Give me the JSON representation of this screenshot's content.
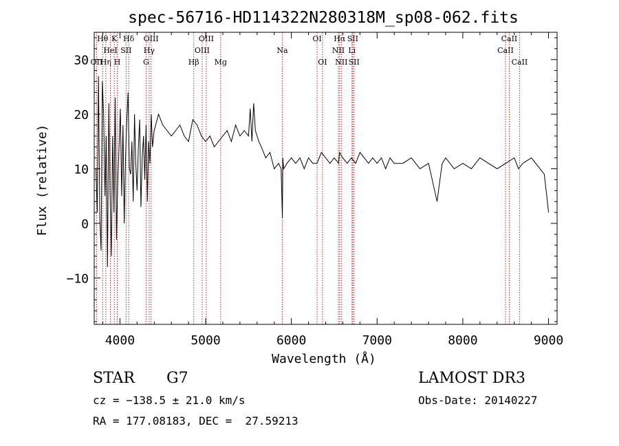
{
  "chart_data": {
    "type": "line",
    "title": "spec-56716-HD114322N280318M_sp08-062.fits",
    "xlabel": "Wavelength (Å)",
    "ylabel": "Flux (relative)",
    "xlim": [
      3700,
      9100
    ],
    "ylim": [
      -18.5,
      35
    ],
    "xticks": [
      4000,
      5000,
      6000,
      7000,
      8000,
      9000
    ],
    "xtick_labels": [
      "4000",
      "5000",
      "6000",
      "7000",
      "8000",
      "9000"
    ],
    "yticks": [
      -10,
      0,
      10,
      20,
      30
    ],
    "ytick_labels": [
      "−10",
      "0",
      "10",
      "20",
      "30"
    ],
    "line_color": "#000000",
    "marker_color": "#b22222",
    "series": [
      {
        "name": "flux",
        "x": [
          3720,
          3735,
          3750,
          3765,
          3780,
          3795,
          3810,
          3825,
          3840,
          3855,
          3870,
          3885,
          3900,
          3915,
          3930,
          3945,
          3960,
          3975,
          3990,
          4005,
          4020,
          4035,
          4050,
          4065,
          4080,
          4095,
          4110,
          4125,
          4140,
          4155,
          4170,
          4185,
          4200,
          4215,
          4230,
          4245,
          4260,
          4275,
          4290,
          4305,
          4320,
          4335,
          4350,
          4365,
          4380,
          4400,
          4450,
          4500,
          4550,
          4600,
          4650,
          4700,
          4750,
          4800,
          4850,
          4900,
          4950,
          5000,
          5050,
          5100,
          5150,
          5200,
          5250,
          5300,
          5350,
          5400,
          5450,
          5500,
          5520,
          5540,
          5560,
          5580,
          5600,
          5620,
          5650,
          5700,
          5750,
          5800,
          5850,
          5880,
          5895,
          5900,
          5910,
          5950,
          6000,
          6050,
          6100,
          6150,
          6200,
          6250,
          6300,
          6350,
          6400,
          6450,
          6500,
          6550,
          6563,
          6600,
          6650,
          6700,
          6750,
          6800,
          6850,
          6900,
          6950,
          7000,
          7050,
          7100,
          7150,
          7200,
          7300,
          7400,
          7500,
          7600,
          7700,
          7750,
          7760,
          7800,
          7900,
          8000,
          8100,
          8200,
          8300,
          8400,
          8500,
          8600,
          8650,
          8700,
          8800,
          8900,
          8950,
          8980,
          9000
        ],
        "y": [
          10,
          2,
          27,
          1,
          -5,
          26,
          20,
          5,
          16,
          -8,
          22,
          5,
          -6,
          16,
          2,
          23,
          -3,
          8,
          14,
          21,
          5,
          18,
          0,
          12,
          19,
          24,
          10,
          9,
          15,
          4,
          20,
          11,
          6,
          14,
          19,
          3,
          12,
          16,
          8,
          18,
          4,
          15,
          11,
          20,
          14,
          17,
          20,
          18,
          17,
          16,
          17,
          18,
          16,
          15,
          19,
          18,
          16,
          15,
          16,
          14,
          15,
          16,
          17,
          15,
          18,
          16,
          17,
          16,
          21,
          15,
          22,
          17,
          16,
          15,
          14,
          12,
          13,
          10,
          11,
          10,
          1,
          12,
          10,
          11,
          12,
          11,
          12,
          10,
          12,
          11,
          11,
          13,
          12,
          11,
          12,
          11,
          13,
          12,
          11,
          12,
          11,
          13,
          12,
          11,
          12,
          11,
          12,
          10,
          12,
          11,
          11,
          12,
          10,
          11,
          4,
          10,
          11,
          12,
          10,
          11,
          10,
          12,
          11,
          10,
          11,
          12,
          10,
          11,
          12,
          10,
          9,
          5,
          2
        ]
      }
    ],
    "lines": [
      {
        "name": "OII",
        "wave": 3727,
        "row": 3
      },
      {
        "name": "Hθ",
        "wave": 3798,
        "row": 1
      },
      {
        "name": "Hη",
        "wave": 3835,
        "row": 3
      },
      {
        "name": "HeI",
        "wave": 3889,
        "row": 2
      },
      {
        "name": "K",
        "wave": 3934,
        "row": 1
      },
      {
        "name": "H",
        "wave": 3969,
        "row": 3
      },
      {
        "name": "SII",
        "wave": 4072,
        "row": 2
      },
      {
        "name": "Hδ",
        "wave": 4102,
        "row": 1
      },
      {
        "name": "G",
        "wave": 4305,
        "row": 3
      },
      {
        "name": "Hγ",
        "wave": 4341,
        "row": 2
      },
      {
        "name": "OIII",
        "wave": 4363,
        "row": 1
      },
      {
        "name": "Hβ",
        "wave": 4861,
        "row": 3
      },
      {
        "name": "OIII",
        "wave": 4959,
        "row": 2
      },
      {
        "name": "OIII",
        "wave": 5007,
        "row": 1
      },
      {
        "name": "Mg",
        "wave": 5175,
        "row": 3
      },
      {
        "name": "Na",
        "wave": 5894,
        "row": 2
      },
      {
        "name": "OI",
        "wave": 6300,
        "row": 1
      },
      {
        "name": "OI",
        "wave": 6363,
        "row": 3
      },
      {
        "name": "NII",
        "wave": 6548,
        "row": 2
      },
      {
        "name": "Hα",
        "wave": 6563,
        "row": 1
      },
      {
        "name": "NII",
        "wave": 6583,
        "row": 3
      },
      {
        "name": "Li",
        "wave": 6707,
        "row": 2
      },
      {
        "name": "SII",
        "wave": 6716,
        "row": 1
      },
      {
        "name": "SII",
        "wave": 6731,
        "row": 3
      },
      {
        "name": "CaII",
        "wave": 8498,
        "row": 2
      },
      {
        "name": "CaII",
        "wave": 8542,
        "row": 1
      },
      {
        "name": "CaII",
        "wave": 8662,
        "row": 3
      }
    ]
  },
  "info": {
    "class_label": "STAR",
    "subclass": "G7",
    "survey": "LAMOST DR3",
    "cz": "cz = −138.5 ± 21.0 km/s",
    "obs_date": "Obs-Date: 20140227",
    "coords": "RA = 177.08183, DEC =  27.59213"
  }
}
